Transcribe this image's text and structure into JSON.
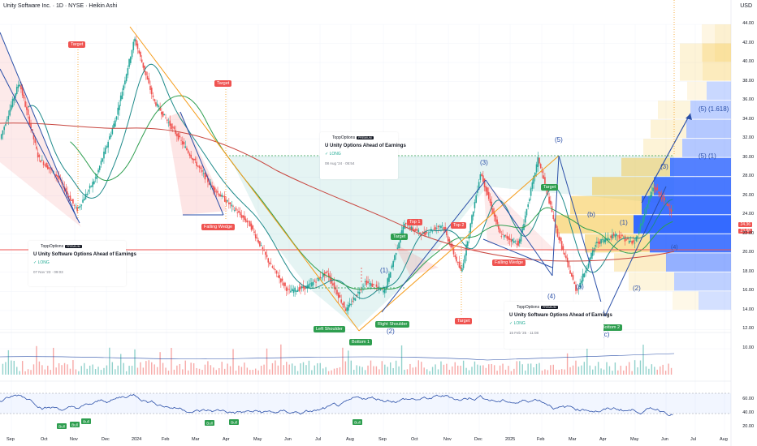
{
  "header": {
    "title": "Unity Software Inc. · 1D · NYSE · Heikin Ashi",
    "currency": "USD"
  },
  "axis": {
    "y_ticks": [
      "44.00",
      "42.00",
      "40.00",
      "38.00",
      "36.00",
      "34.00",
      "32.00",
      "30.00",
      "28.00",
      "26.00",
      "24.00",
      "22.00",
      "20.00",
      "18.00",
      "16.00",
      "14.00",
      "12.00",
      "10.00"
    ],
    "rsi_ticks": [
      "60.00",
      "40.00",
      "20.00"
    ],
    "x_ticks": [
      "Sep",
      "Oct",
      "Nov",
      "Dec",
      "2024",
      "Feb",
      "Mar",
      "Apr",
      "May",
      "Jun",
      "Jul",
      "Aug",
      "Sep",
      "Oct",
      "Nov",
      "Dec",
      "2025",
      "Feb",
      "Mar",
      "Apr",
      "May",
      "Jun",
      "Jul",
      "Aug"
    ],
    "price_tag_red": "24.36",
    "price_tag_red2": "23.88"
  },
  "labels": {
    "target_1": "Target",
    "target_2": "Target",
    "target_3": "Target",
    "target_4": "Target",
    "target_5": "Target",
    "falling_wedge_1": "Falling Wedge",
    "falling_wedge_2": "Falling Wedge",
    "top_1": "Top 1",
    "top_2": "Top 2",
    "left_shoulder": "Left Shoulder",
    "right_shoulder": "Right Shoulder",
    "bottom_1": "Bottom 1",
    "bottom_2": "Bottom 2",
    "bull_1": "Bull",
    "bull_2": "Bull",
    "bull_3": "Bull",
    "bull_4": "Bull",
    "bull_5": "Bull",
    "bull_6": "Bull",
    "bull_7": "Bull"
  },
  "elliott": {
    "w1": "(1)",
    "w2": "(2)",
    "w3": "(3)",
    "w4": "(4)",
    "w5": "(5)",
    "a": "(a)",
    "b": "(b)",
    "c": "(c)",
    "i": "(1)",
    "ii": "(2)",
    "iii": "(3)",
    "iv": "(4)",
    "v1": "(5) (1)",
    "v1618": "(5) (1.618)"
  },
  "cards": [
    {
      "brand": "ToppOptions",
      "badge": "PREMIUM",
      "title": "U Unity Software Options Ahead of Earnings",
      "signal": "LONG",
      "date": "07 Nov '23 · 09:03"
    },
    {
      "brand": "ToppOptions",
      "badge": "PREMIUM",
      "title": "U Unity Options Ahead of Earnings",
      "signal": "LONG",
      "date": "08 Aug '24 · 05:54"
    },
    {
      "brand": "ToppOptions",
      "badge": "PREMIUM",
      "title": "U Unity Software Options Ahead of Earnings",
      "signal": "LONG",
      "date": "15 Feb '25 · 11:08"
    }
  ],
  "colors": {
    "bull": "#26a69a",
    "bear": "#ef5350",
    "wedge": "#2a4fa8",
    "ma200": "#c8463f",
    "ma_green": "#2e9e4f",
    "ma_teal": "#1e8a8a",
    "trend_orange": "#f59c1a",
    "vp_blue": "#2962ff",
    "vp_yellow": "#f5c543",
    "rsi": "#2a4fa8"
  },
  "chart_data": {
    "type": "candlestick",
    "title": "Unity Software Inc. · 1D · NYSE · Heikin Ashi",
    "ylim": [
      10,
      44
    ],
    "x": [
      "Sep",
      "Oct",
      "Nov",
      "Dec",
      "2024",
      "Feb",
      "Mar",
      "Apr",
      "May",
      "Jun",
      "Jul",
      "Aug",
      "Sep",
      "Oct",
      "Nov",
      "Dec",
      "2025",
      "Feb",
      "Mar",
      "Apr",
      "May",
      "Jun"
    ],
    "close_path": [
      {
        "t": "Sep",
        "v": 32
      },
      {
        "t": "mid-Sep",
        "v": 38
      },
      {
        "t": "Oct",
        "v": 30
      },
      {
        "t": "mid-Oct",
        "v": 28
      },
      {
        "t": "Nov",
        "v": 24.5
      },
      {
        "t": "mid-Nov",
        "v": 28
      },
      {
        "t": "Dec",
        "v": 34
      },
      {
        "t": "2024",
        "v": 42.5
      },
      {
        "t": "mid-Jan",
        "v": 36
      },
      {
        "t": "Feb",
        "v": 33
      },
      {
        "t": "Mar",
        "v": 30
      },
      {
        "t": "mid-Mar",
        "v": 27
      },
      {
        "t": "Apr",
        "v": 25
      },
      {
        "t": "May",
        "v": 23
      },
      {
        "t": "mid-May",
        "v": 19
      },
      {
        "t": "Jun",
        "v": 16
      },
      {
        "t": "Jul",
        "v": 16.5
      },
      {
        "t": "mid-Jul",
        "v": 18
      },
      {
        "t": "Aug",
        "v": 14
      },
      {
        "t": "mid-Aug",
        "v": 17
      },
      {
        "t": "Sep",
        "v": 16
      },
      {
        "t": "mid-Sep",
        "v": 23
      },
      {
        "t": "Oct",
        "v": 22
      },
      {
        "t": "Nov",
        "v": 23
      },
      {
        "t": "mid-Nov",
        "v": 18
      },
      {
        "t": "Dec",
        "v": 28.5
      },
      {
        "t": "2025",
        "v": 22
      },
      {
        "t": "Feb",
        "v": 21
      },
      {
        "t": "mid-Feb",
        "v": 30
      },
      {
        "t": "Mar",
        "v": 22
      },
      {
        "t": "Apr",
        "v": 16
      },
      {
        "t": "mid-Apr",
        "v": 21
      },
      {
        "t": "May",
        "v": 22
      },
      {
        "t": "mid-May",
        "v": 21
      },
      {
        "t": "Jun",
        "v": 27
      },
      {
        "t": "end",
        "v": 24.36
      }
    ],
    "last_price": 24.36,
    "rsi": {
      "ticks": [
        20,
        40,
        60
      ],
      "band": [
        40,
        60
      ]
    }
  }
}
